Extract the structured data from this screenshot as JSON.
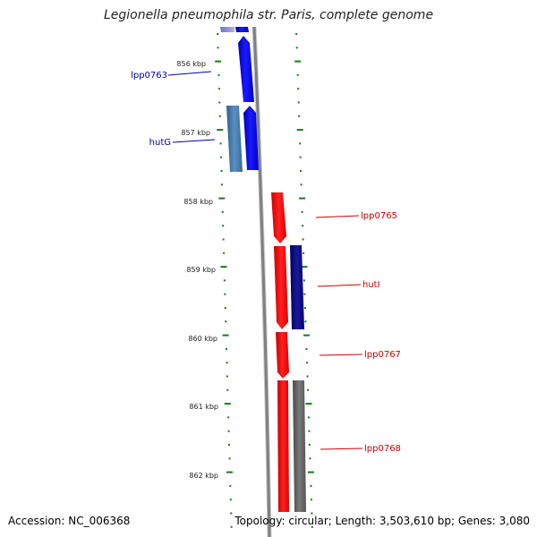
{
  "title": "Legionella pneumophila str. Paris, complete genome",
  "footer": {
    "accession": "Accession: NC_006368",
    "topology": "Topology: circular; Length: 3,503,610 bp; Genes: 3,080"
  },
  "colors": {
    "ticks": "#1a7a1a",
    "backbone": "#888888",
    "forward_gene": "#0000ee",
    "forward_gene_alt": "#4a7fb0",
    "reverse_gene": "#ee0000",
    "reverse_gene_alt": "#000080",
    "gray_gene": "#666666",
    "label_blue": "#0000aa",
    "label_red": "#cc0000"
  },
  "ticks": [
    {
      "label": "856 kbp"
    },
    {
      "label": "857 kbp"
    },
    {
      "label": "858 kbp"
    },
    {
      "label": "859 kbp"
    },
    {
      "label": "860 kbp"
    },
    {
      "label": "861 kbp"
    },
    {
      "label": "862 kbp"
    }
  ],
  "gene_labels": [
    {
      "text": "lpp0763",
      "color": "#0000aa"
    },
    {
      "text": "hutG",
      "color": "#0000aa"
    },
    {
      "text": "lpp0765",
      "color": "#cc0000"
    },
    {
      "text": "hutI",
      "color": "#cc0000"
    },
    {
      "text": "lpp0767",
      "color": "#cc0000"
    },
    {
      "text": "lpp0768",
      "color": "#cc0000"
    }
  ]
}
